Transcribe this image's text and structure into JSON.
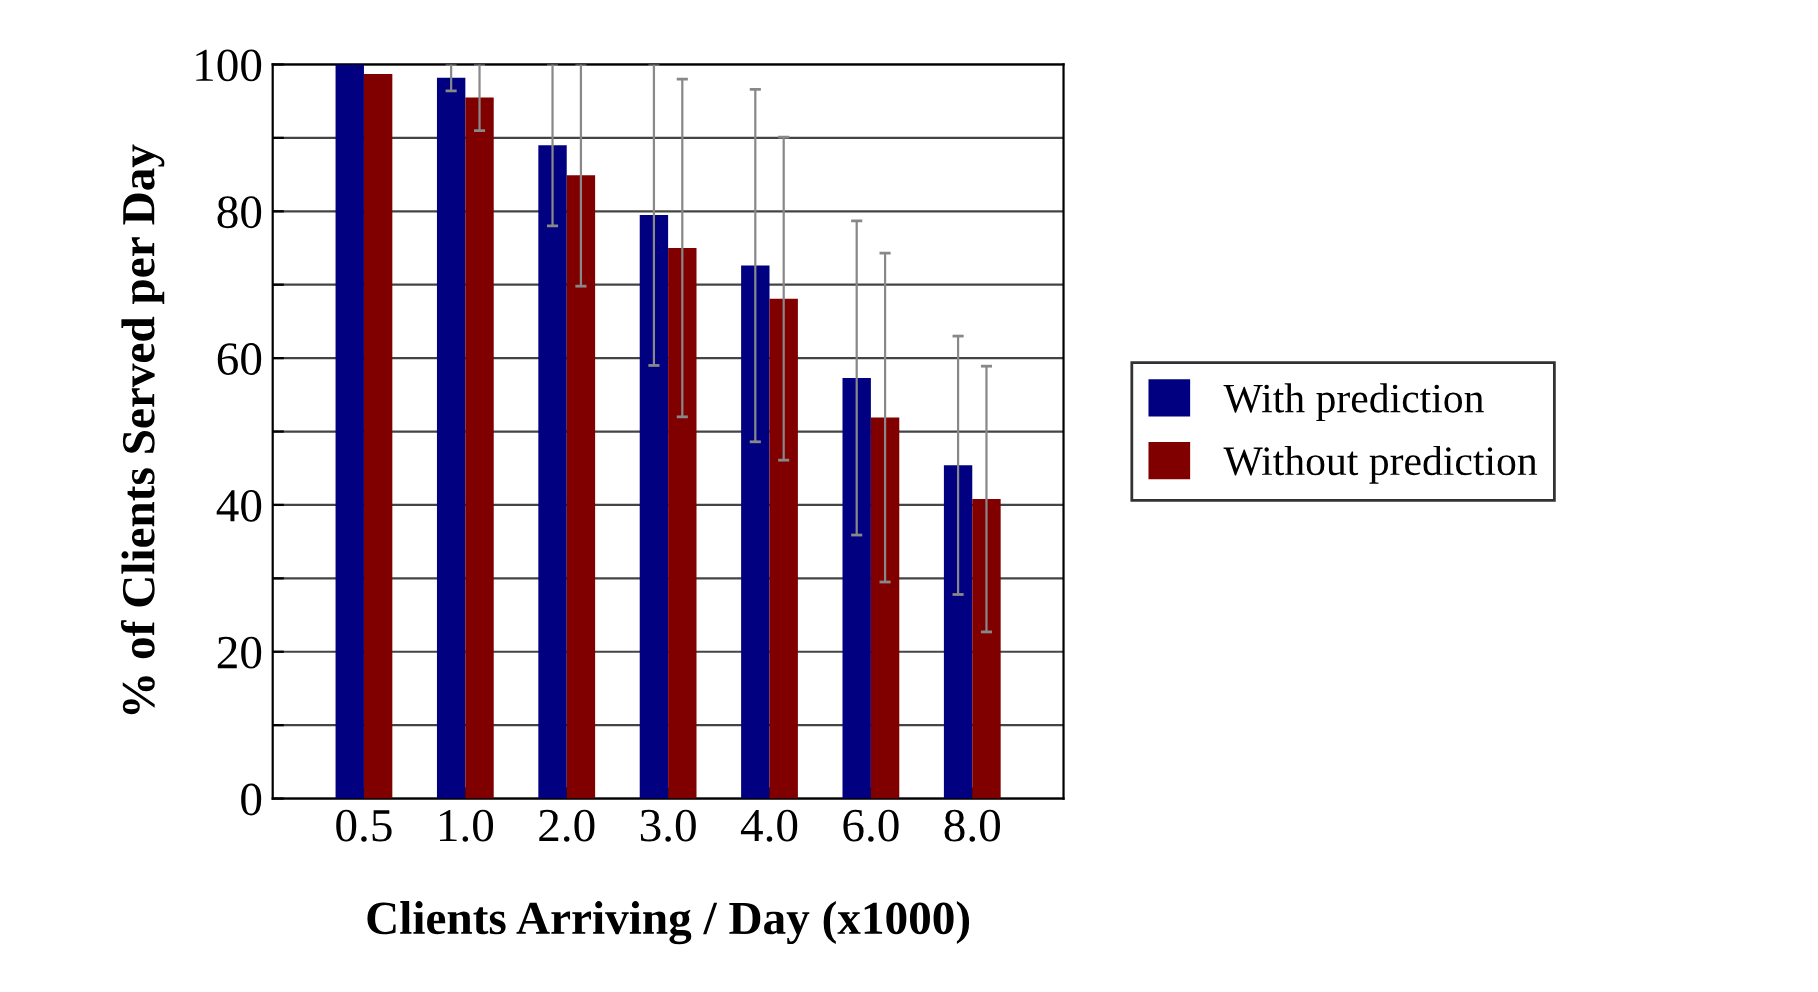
{
  "chart_data": {
    "type": "bar",
    "xlabel": "Clients Arriving / Day (x1000)",
    "ylabel": "% of Clients Served per Day",
    "categories": [
      "0.5",
      "1.0",
      "2.0",
      "3.0",
      "4.0",
      "6.0",
      "8.0"
    ],
    "series": [
      {
        "name": "With prediction",
        "color": "#000080",
        "values": [
          100,
          98.2,
          89,
          79.5,
          72.6,
          57.3,
          45.4
        ],
        "errors": [
          null,
          1.8,
          11,
          20.5,
          24,
          21.4,
          17.6
        ]
      },
      {
        "name": "Without prediction",
        "color": "#800000",
        "values": [
          98.7,
          95.5,
          84.9,
          75,
          68.1,
          51.9,
          40.8
        ],
        "errors": [
          null,
          4.5,
          15.1,
          23,
          22,
          22.4,
          18.1
        ]
      }
    ],
    "ylim": [
      0,
      100
    ],
    "yticks": [
      0,
      {
        "value": 10,
        "label": null
      },
      20,
      {
        "value": 30,
        "label": null
      },
      40,
      {
        "value": 50,
        "label": null
      },
      60,
      {
        "value": 70,
        "label": null
      },
      80,
      {
        "value": 90,
        "label": null
      },
      100
    ],
    "grid": "y",
    "legend": "right"
  }
}
